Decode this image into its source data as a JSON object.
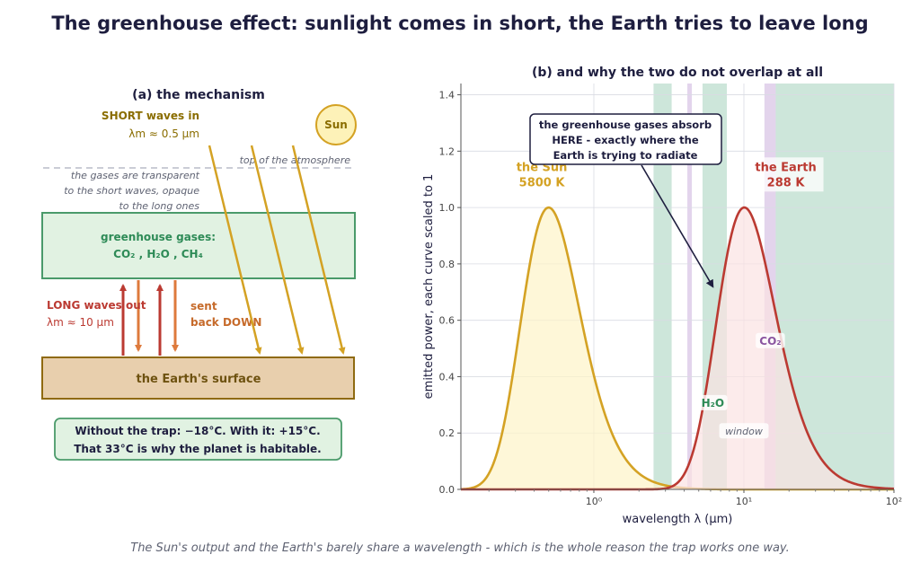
{
  "title": "The greenhouse effect: sunlight comes in short, the Earth tries to leave long",
  "caption": "The Sun's output and the Earth's barely share a wavelength - which is the whole reason the trap works one way.",
  "colors": {
    "sun": "#d4a224",
    "sun_text": "#8a6d00",
    "earth": "#bb3a32",
    "back_down": "#de7a3c",
    "gas_green": "#2e8b57",
    "co2_purple": "#8a55a0",
    "band_green": "#9ccdb5",
    "navy": "#1e1e3f"
  },
  "mechanism": {
    "title": "(a)  the mechanism",
    "short_label": "SHORT waves in",
    "short_peak": "λm ≈ 0.5 μm",
    "sun_label": "Sun",
    "toa_label": "top of the atmosphere",
    "transparency_note": [
      "the gases are transparent",
      "to the short waves, opaque",
      "to the long ones"
    ],
    "gas_box_title": "greenhouse gases:",
    "gas_box_species": "CO₂ ,  H₂O ,  CH₄",
    "long_label": "LONG waves out",
    "long_peak": "λm ≈ 10 μm",
    "sent_label": [
      "sent",
      "back DOWN"
    ],
    "surface_label": "the Earth's surface",
    "trap_line1": "Without the trap:  −18°C.    With it:  +15°C.",
    "trap_line2": "That 33°C is why the planet is habitable."
  },
  "chart_data": {
    "type": "area",
    "title": "(b)  and why the two do not overlap at all",
    "xlabel": "wavelength  λ  (μm)",
    "ylabel": "emitted power, each curve scaled to 1",
    "xscale": "log",
    "xlim": [
      0.13,
      100
    ],
    "ylim": [
      0,
      1.44
    ],
    "x_ticks": [
      1,
      10,
      100
    ],
    "x_tick_labels": [
      "10⁰",
      "10¹",
      "10²"
    ],
    "y_ticks": [
      0.0,
      0.2,
      0.4,
      0.6,
      0.8,
      1.0,
      1.2,
      1.4
    ],
    "y_tick_labels": [
      "0.0",
      "0.2",
      "0.4",
      "0.6",
      "0.8",
      "1.0",
      "1.2",
      "1.4"
    ],
    "grid": true,
    "series": [
      {
        "name": "the Sun",
        "sublabel": "5800 K",
        "temperature_K": 5800,
        "peak_um": 0.5,
        "peak_value": 1.0,
        "color": "#d4a224",
        "fill": "#fdf3c8"
      },
      {
        "name": "the Earth",
        "sublabel": "288 K",
        "temperature_K": 288,
        "peak_um": 10,
        "peak_value": 1.0,
        "color": "#bb3a32",
        "fill": "#fbe2e2"
      }
    ],
    "absorption_bands": [
      {
        "x0": 2.5,
        "x1": 3.3,
        "color": "#9ccdb5"
      },
      {
        "x0": 4.2,
        "x1": 4.5,
        "color": "#c7a9d9"
      },
      {
        "x0": 5.3,
        "x1": 7.7,
        "color": "#9ccdb5"
      },
      {
        "x0": 13.7,
        "x1": 16.3,
        "color": "#c7a9d9"
      },
      {
        "x0": 16.3,
        "x1": 100,
        "color": "#9ccdb5"
      }
    ],
    "band_labels": [
      {
        "text": "H₂O",
        "x": 6.2,
        "y": 0.3,
        "color": "#2e8b57",
        "weight": "bold"
      },
      {
        "text": "CO₂",
        "x": 15.0,
        "y": 0.52,
        "color": "#8a55a0",
        "weight": "bold"
      },
      {
        "text": "window",
        "x": 10.0,
        "y": 0.2,
        "color": "#5f6373",
        "weight": "italic"
      }
    ],
    "annotation": {
      "text": [
        "the greenhouse gases absorb",
        "HERE - exactly where the",
        "Earth is trying to radiate"
      ],
      "target_x": 6.2,
      "target_y": 0.72
    }
  }
}
